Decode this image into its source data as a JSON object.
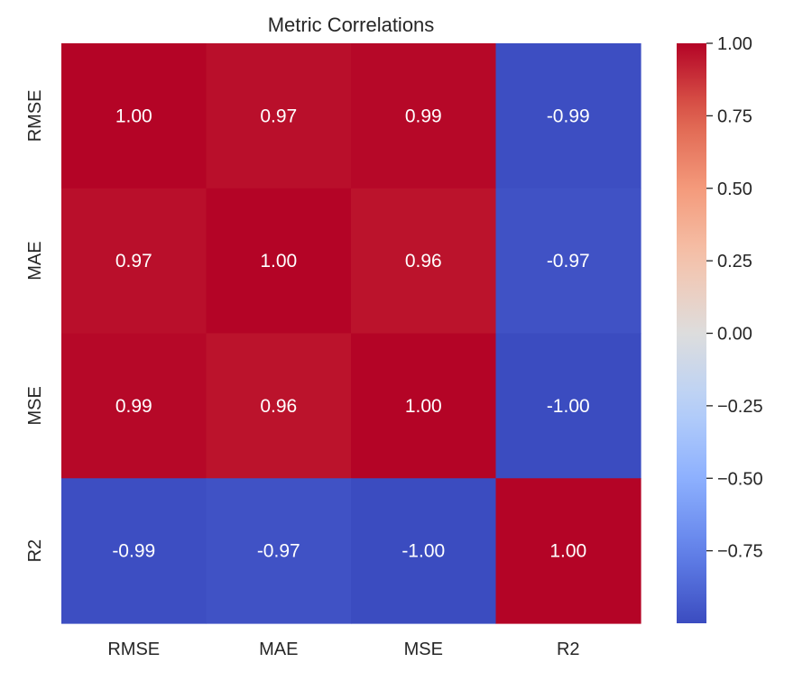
{
  "chart_data": {
    "type": "heatmap",
    "title": "Metric Correlations",
    "x_categories": [
      "RMSE",
      "MAE",
      "MSE",
      "R2"
    ],
    "y_categories": [
      "RMSE",
      "MAE",
      "MSE",
      "R2"
    ],
    "values": [
      [
        1.0,
        0.97,
        0.99,
        -0.99
      ],
      [
        0.97,
        1.0,
        0.96,
        -0.97
      ],
      [
        0.99,
        0.96,
        1.0,
        -1.0
      ],
      [
        -0.99,
        -0.97,
        -1.0,
        1.0
      ]
    ],
    "cell_labels": [
      [
        "1.00",
        "0.97",
        "0.99",
        "-0.99"
      ],
      [
        "0.97",
        "1.00",
        "0.96",
        "-0.97"
      ],
      [
        "0.99",
        "0.96",
        "1.00",
        "-1.00"
      ],
      [
        "-0.99",
        "-0.97",
        "-1.00",
        "1.00"
      ]
    ],
    "colormap": "coolwarm",
    "vmin": -1.0,
    "vmax": 1.0,
    "colorbar_ticks": [
      1.0,
      0.75,
      0.5,
      0.25,
      0.0,
      -0.25,
      -0.5,
      -0.75
    ],
    "colorbar_tick_labels": [
      "1.00",
      "0.75",
      "0.50",
      "0.25",
      "0.00",
      "−0.25",
      "−0.50",
      "−0.75"
    ],
    "legend": "colorbar-right",
    "grid": false
  }
}
